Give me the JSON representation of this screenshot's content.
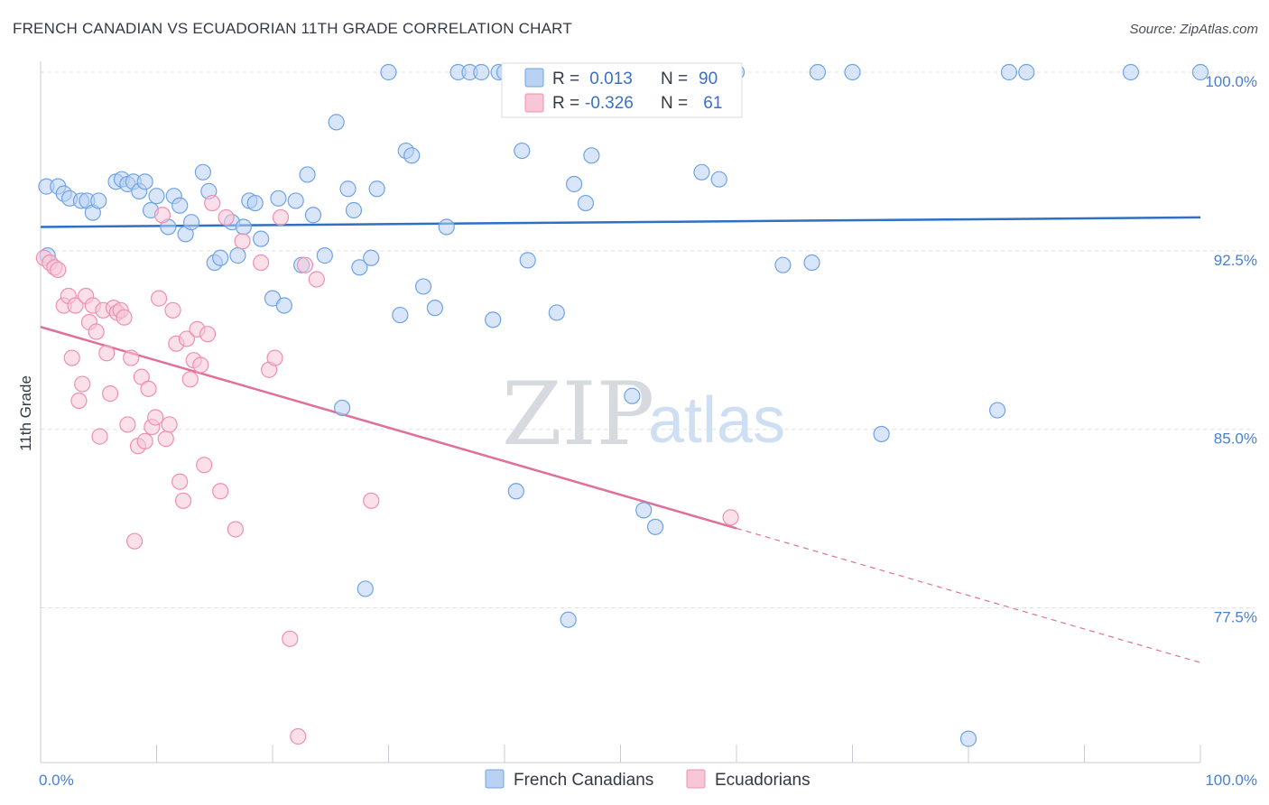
{
  "title": "FRENCH CANADIAN VS ECUADORIAN 11TH GRADE CORRELATION CHART",
  "source": "Source: ZipAtlas.com",
  "watermark": {
    "part1": "ZIP",
    "part2": "atlas"
  },
  "colors": {
    "blue": "#6fa3e6",
    "blue_fill": "#b9d2f4",
    "blue_line": "#2f6fc4",
    "pink": "#f08fb0",
    "pink_fill": "#f7c6d7",
    "pink_line": "#e0709a",
    "axis_text": "#4a7fd0",
    "grid": "#dde1e6"
  },
  "legend": {
    "r_label": "R =",
    "n_label": "N =",
    "rows": [
      {
        "series": "French Canadians",
        "r": " 0.013",
        "n": "90"
      },
      {
        "series": "Ecuadorians",
        "r": "-0.326",
        "n": " 61"
      }
    ]
  },
  "chart_data": {
    "type": "scatter",
    "xlabel": "",
    "ylabel": "11th Grade",
    "xlim": [
      0,
      100
    ],
    "ylim": [
      71.0,
      101.0
    ],
    "x_tick_labels": [
      "0.0%",
      "100.0%"
    ],
    "y_ticks": [
      77.5,
      85.0,
      92.5,
      100.0
    ],
    "y_tick_labels": [
      "77.5%",
      "85.0%",
      "92.5%",
      "100.0%"
    ],
    "grid": "horizontal dashed",
    "legend_placement": "top-center",
    "series": [
      {
        "name": "French Canadians",
        "trend": {
          "x": [
            0,
            100
          ],
          "y": [
            93.5,
            93.9
          ],
          "dashed_from": null
        },
        "points": [
          [
            0.5,
            95.2
          ],
          [
            1.5,
            95.2
          ],
          [
            2.0,
            94.9
          ],
          [
            2.5,
            94.7
          ],
          [
            3.5,
            94.6
          ],
          [
            4.0,
            94.6
          ],
          [
            4.5,
            94.1
          ],
          [
            5.0,
            94.6
          ],
          [
            6.5,
            95.4
          ],
          [
            7.0,
            95.5
          ],
          [
            7.5,
            95.3
          ],
          [
            8.0,
            95.4
          ],
          [
            8.5,
            95.0
          ],
          [
            9.0,
            95.4
          ],
          [
            9.5,
            94.2
          ],
          [
            10.0,
            94.8
          ],
          [
            11.0,
            93.5
          ],
          [
            11.5,
            94.8
          ],
          [
            12.0,
            94.4
          ],
          [
            12.5,
            93.2
          ],
          [
            13.0,
            93.7
          ],
          [
            14.0,
            95.8
          ],
          [
            14.5,
            95.0
          ],
          [
            15.0,
            92.0
          ],
          [
            15.5,
            92.2
          ],
          [
            16.5,
            93.7
          ],
          [
            17.0,
            92.3
          ],
          [
            17.5,
            93.5
          ],
          [
            18.0,
            94.6
          ],
          [
            18.5,
            94.5
          ],
          [
            19.0,
            93.0
          ],
          [
            20.0,
            90.5
          ],
          [
            20.5,
            94.7
          ],
          [
            21.0,
            90.2
          ],
          [
            22.0,
            94.6
          ],
          [
            22.5,
            91.9
          ],
          [
            23.0,
            95.7
          ],
          [
            23.5,
            94.0
          ],
          [
            24.5,
            92.3
          ],
          [
            25.5,
            97.9
          ],
          [
            26.0,
            85.9
          ],
          [
            26.5,
            95.1
          ],
          [
            27.0,
            94.2
          ],
          [
            27.5,
            91.8
          ],
          [
            28.0,
            78.3
          ],
          [
            28.5,
            92.2
          ],
          [
            29.0,
            95.1
          ],
          [
            30.0,
            100.0
          ],
          [
            31.0,
            89.8
          ],
          [
            31.5,
            96.7
          ],
          [
            32.0,
            96.5
          ],
          [
            33.0,
            91.0
          ],
          [
            34.0,
            90.1
          ],
          [
            35.0,
            93.5
          ],
          [
            36.0,
            100.0
          ],
          [
            37.0,
            100.0
          ],
          [
            38.0,
            100.0
          ],
          [
            39.0,
            89.6
          ],
          [
            39.5,
            100.0
          ],
          [
            40.0,
            100.0
          ],
          [
            41.0,
            82.4
          ],
          [
            41.5,
            96.7
          ],
          [
            42.0,
            92.1
          ],
          [
            43.0,
            100.0
          ],
          [
            44.5,
            89.9
          ],
          [
            45.5,
            77.0
          ],
          [
            46.0,
            95.3
          ],
          [
            47.0,
            94.5
          ],
          [
            47.5,
            96.5
          ],
          [
            48.5,
            100.0
          ],
          [
            49.0,
            100.0
          ],
          [
            50.0,
            100.0
          ],
          [
            51.0,
            86.4
          ],
          [
            52.0,
            81.6
          ],
          [
            53.0,
            80.9
          ],
          [
            57.0,
            95.8
          ],
          [
            58.5,
            95.5
          ],
          [
            60.0,
            100.0
          ],
          [
            64.0,
            91.9
          ],
          [
            66.5,
            92.0
          ],
          [
            67.0,
            100.0
          ],
          [
            70.0,
            100.0
          ],
          [
            72.5,
            84.8
          ],
          [
            80.0,
            72.0
          ],
          [
            82.5,
            85.8
          ],
          [
            83.5,
            100.0
          ],
          [
            85.0,
            100.0
          ],
          [
            94.0,
            100.0
          ],
          [
            100.0,
            100.0
          ],
          [
            0.6,
            92.3
          ]
        ]
      },
      {
        "name": "Ecuadorians",
        "trend": {
          "x": [
            0,
            100
          ],
          "y": [
            89.3,
            75.2
          ],
          "dashed_from": 60
        },
        "points": [
          [
            0.3,
            92.2
          ],
          [
            0.8,
            92.0
          ],
          [
            1.2,
            91.8
          ],
          [
            1.5,
            91.7
          ],
          [
            2.0,
            90.2
          ],
          [
            2.4,
            90.6
          ],
          [
            2.7,
            88.0
          ],
          [
            3.0,
            90.2
          ],
          [
            3.3,
            86.2
          ],
          [
            3.6,
            86.9
          ],
          [
            3.9,
            90.6
          ],
          [
            4.2,
            89.5
          ],
          [
            4.5,
            90.2
          ],
          [
            4.8,
            89.1
          ],
          [
            5.1,
            84.7
          ],
          [
            5.4,
            90.0
          ],
          [
            5.7,
            88.2
          ],
          [
            6.0,
            86.5
          ],
          [
            6.3,
            90.1
          ],
          [
            6.6,
            89.9
          ],
          [
            6.9,
            90.0
          ],
          [
            7.2,
            89.7
          ],
          [
            7.5,
            85.2
          ],
          [
            7.8,
            88.0
          ],
          [
            8.1,
            80.3
          ],
          [
            8.4,
            84.3
          ],
          [
            8.7,
            87.2
          ],
          [
            9.0,
            84.5
          ],
          [
            9.3,
            86.7
          ],
          [
            9.6,
            85.1
          ],
          [
            9.9,
            85.5
          ],
          [
            10.2,
            90.5
          ],
          [
            10.5,
            94.0
          ],
          [
            10.8,
            84.6
          ],
          [
            11.1,
            85.2
          ],
          [
            11.4,
            90.0
          ],
          [
            11.7,
            88.6
          ],
          [
            12.0,
            82.8
          ],
          [
            12.3,
            82.0
          ],
          [
            12.6,
            88.8
          ],
          [
            12.9,
            87.1
          ],
          [
            13.2,
            87.9
          ],
          [
            13.5,
            89.2
          ],
          [
            13.8,
            87.7
          ],
          [
            14.1,
            83.5
          ],
          [
            14.4,
            89.0
          ],
          [
            14.8,
            94.5
          ],
          [
            15.5,
            82.4
          ],
          [
            16.0,
            93.9
          ],
          [
            16.8,
            80.8
          ],
          [
            17.4,
            92.9
          ],
          [
            19.0,
            92.0
          ],
          [
            19.7,
            87.5
          ],
          [
            20.2,
            88.0
          ],
          [
            20.7,
            93.9
          ],
          [
            21.5,
            76.2
          ],
          [
            22.2,
            72.1
          ],
          [
            22.8,
            91.9
          ],
          [
            23.8,
            91.3
          ],
          [
            28.5,
            82.0
          ],
          [
            59.5,
            81.3
          ]
        ]
      }
    ]
  }
}
